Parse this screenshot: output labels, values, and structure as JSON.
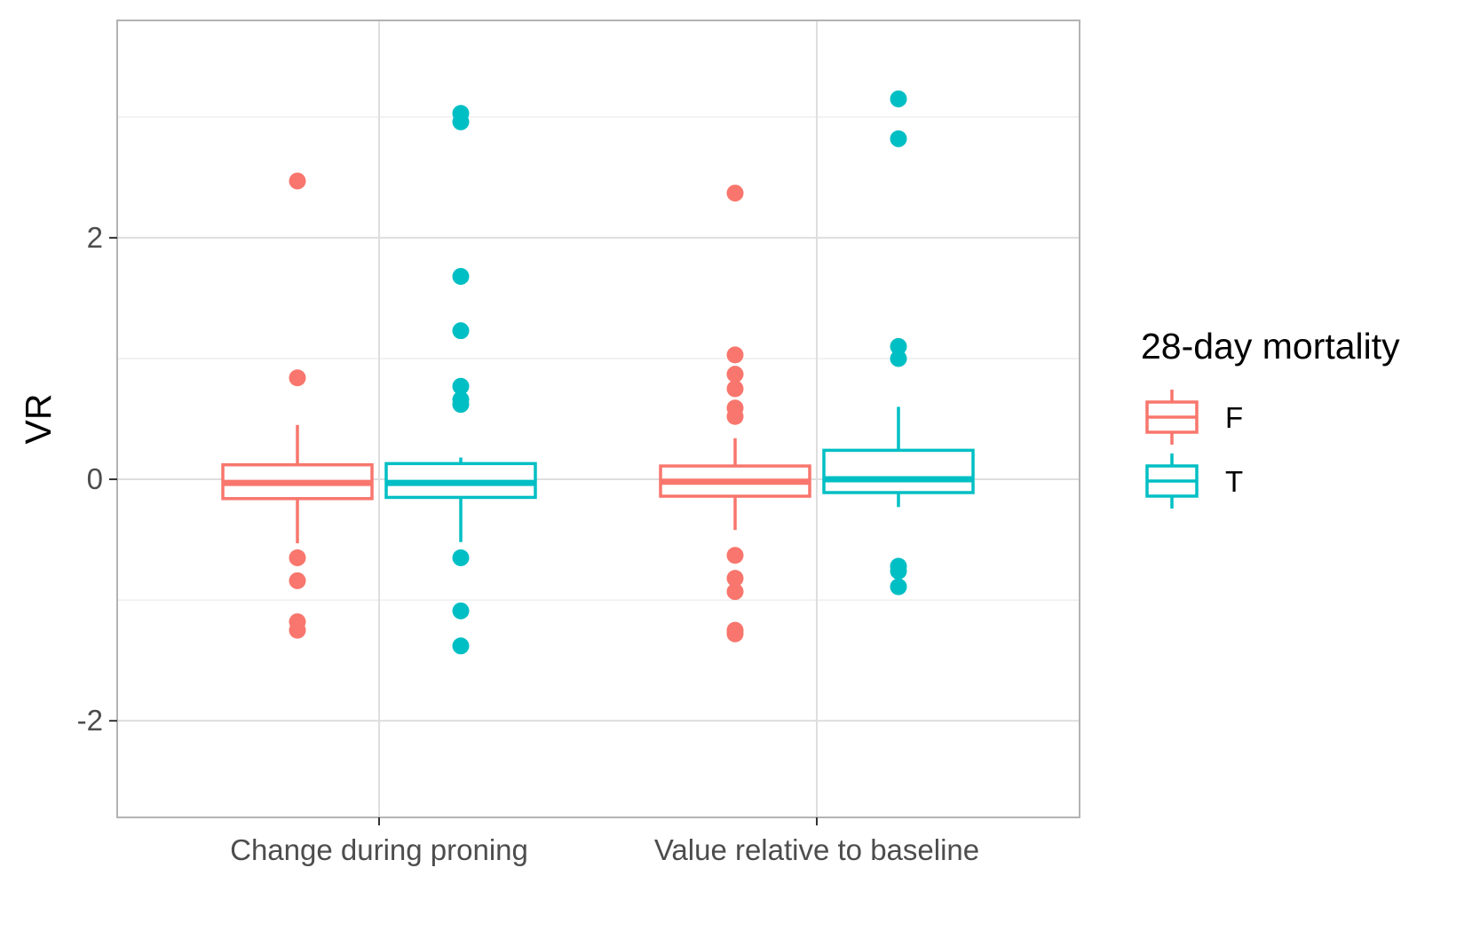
{
  "chart_data": {
    "type": "boxplot",
    "title": "",
    "xlabel": "",
    "ylabel": "VR",
    "categories": [
      "Change during proning",
      "Value relative to baseline"
    ],
    "ylim": [
      -2.8,
      3.8
    ],
    "yticks": [
      -2,
      0,
      2
    ],
    "ytick_labels": [
      "-2",
      "0",
      "2"
    ],
    "grid": true,
    "legend": {
      "title": "28-day mortality",
      "position": "right",
      "entries": [
        {
          "label": "F",
          "color": "#F8766D"
        },
        {
          "label": "T",
          "color": "#00BFC4"
        }
      ]
    },
    "series": [
      {
        "name": "F",
        "color": "#F8766D",
        "boxes": [
          {
            "category": "Change during proning",
            "whisker_low": -0.53,
            "q1": -0.16,
            "median": -0.03,
            "q3": 0.12,
            "whisker_high": 0.45,
            "outliers": [
              2.47,
              0.84,
              -0.65,
              -0.84,
              -1.18,
              -1.25
            ]
          },
          {
            "category": "Value relative to baseline",
            "whisker_low": -0.42,
            "q1": -0.14,
            "median": -0.02,
            "q3": 0.11,
            "whisker_high": 0.34,
            "outliers": [
              2.37,
              1.03,
              0.87,
              0.75,
              0.59,
              0.52,
              -0.63,
              -0.82,
              -0.93,
              -1.25,
              -1.28
            ]
          }
        ]
      },
      {
        "name": "T",
        "color": "#00BFC4",
        "boxes": [
          {
            "category": "Change during proning",
            "whisker_low": -0.52,
            "q1": -0.15,
            "median": -0.03,
            "q3": 0.13,
            "whisker_high": 0.18,
            "outliers": [
              3.03,
              2.96,
              1.68,
              1.23,
              0.77,
              0.66,
              0.62,
              -0.65,
              -1.09,
              -1.38
            ]
          },
          {
            "category": "Value relative to baseline",
            "whisker_low": -0.23,
            "q1": -0.11,
            "median": 0.0,
            "q3": 0.24,
            "whisker_high": 0.6,
            "outliers": [
              3.15,
              2.82,
              1.1,
              1.0,
              -0.72,
              -0.76,
              -0.89
            ]
          }
        ]
      }
    ]
  }
}
